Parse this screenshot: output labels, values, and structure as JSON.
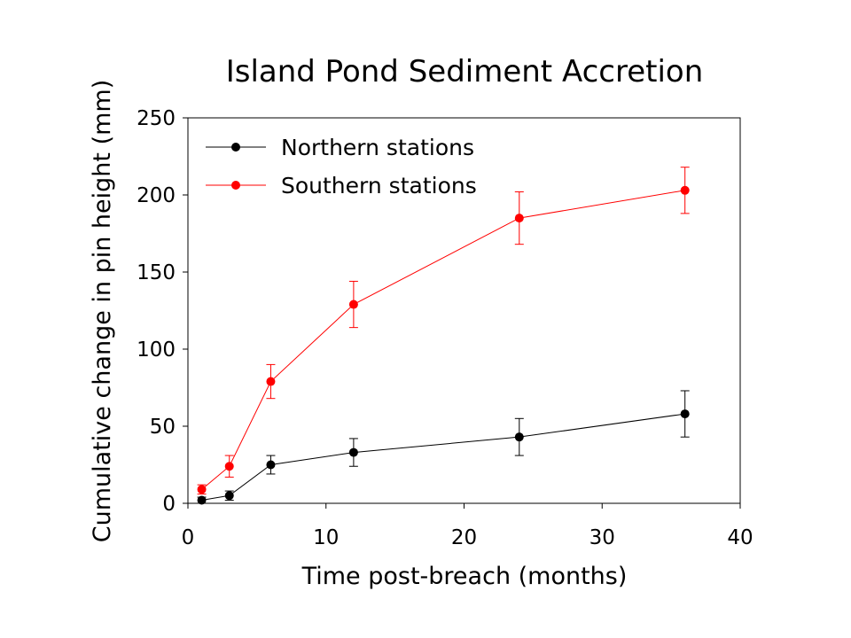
{
  "chart_data": {
    "type": "line",
    "title": "Island Pond Sediment Accretion",
    "xlabel": "Time post-breach (months)",
    "ylabel": "Cumulative change in pin height (mm)",
    "xlim": [
      0,
      40
    ],
    "ylim": [
      0,
      250
    ],
    "xticks": [
      0,
      10,
      20,
      30,
      40
    ],
    "yticks": [
      0,
      50,
      100,
      150,
      200,
      250
    ],
    "grid": false,
    "legend_position": "top-left",
    "x": [
      1,
      3,
      6,
      12,
      24,
      36
    ],
    "series": [
      {
        "name": "Northern stations",
        "color": "#000000",
        "values": [
          2,
          5,
          25,
          33,
          43,
          58
        ],
        "error": [
          2,
          3,
          6,
          9,
          12,
          15
        ]
      },
      {
        "name": "Southern stations",
        "color": "#ff0000",
        "values": [
          9,
          24,
          79,
          129,
          185,
          203
        ],
        "error": [
          3,
          7,
          11,
          15,
          17,
          15
        ]
      }
    ]
  }
}
